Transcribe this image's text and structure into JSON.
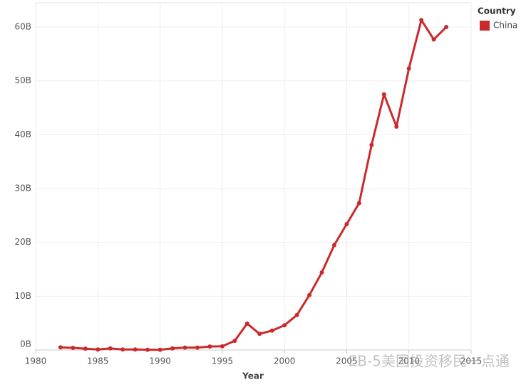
{
  "chart_data": {
    "type": "line",
    "x_label": "Year",
    "legend_title": "Country",
    "x": [
      1982,
      1983,
      1984,
      1985,
      1986,
      1987,
      1988,
      1989,
      1990,
      1991,
      1992,
      1993,
      1994,
      1995,
      1996,
      1997,
      1998,
      1999,
      2000,
      2001,
      2002,
      2003,
      2004,
      2005,
      2006,
      2007,
      2008,
      2009,
      2010,
      2011,
      2012,
      2013
    ],
    "series": [
      {
        "name": "China",
        "color": "#cb2a2c",
        "values": [
          0.5,
          0.4,
          0.25,
          0.1,
          0.3,
          0.1,
          0.1,
          0.05,
          0.05,
          0.3,
          0.45,
          0.45,
          0.65,
          0.7,
          1.7,
          4.9,
          3.0,
          3.6,
          4.6,
          6.5,
          10.2,
          14.4,
          19.5,
          23.4,
          27.3,
          38.1,
          47.5,
          41.5,
          52.3,
          61.3,
          57.7,
          60.0
        ]
      }
    ],
    "xlim": [
      1980,
      2015
    ],
    "xticks": [
      1980,
      1985,
      1990,
      1995,
      2000,
      2005,
      2010,
      2015
    ],
    "ylim": [
      0,
      64.5
    ],
    "yticks": [
      {
        "value": 0,
        "label": "0B"
      },
      {
        "value": 10,
        "label": "10B"
      },
      {
        "value": 20,
        "label": "20B"
      },
      {
        "value": 30,
        "label": "30B"
      },
      {
        "value": 40,
        "label": "40B"
      },
      {
        "value": 50,
        "label": "50B"
      },
      {
        "value": 60,
        "label": "60B"
      }
    ],
    "grid": true,
    "legend_position": "right",
    "watermark": "EB-5美国投资移民一点通"
  }
}
